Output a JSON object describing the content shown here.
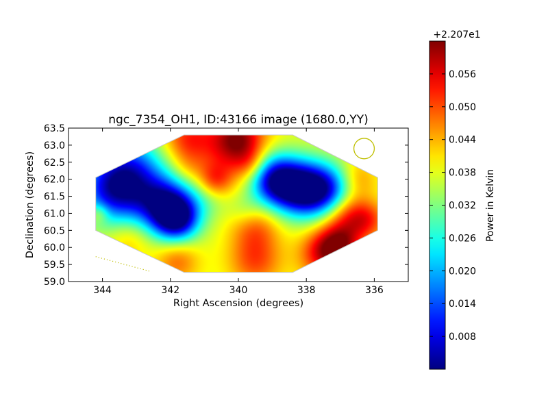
{
  "chart_data": {
    "type": "heatmap",
    "title": "ngc_7354_OH1, ID:43166 image (1680.0,YY)",
    "xlabel": "Right Ascension (degrees)",
    "ylabel": "Declination (degrees)",
    "xlim": [
      345,
      335
    ],
    "ylim": [
      59.0,
      63.5
    ],
    "x_ticks": [
      "344",
      "342",
      "340",
      "338",
      "336"
    ],
    "y_ticks": [
      "59.0",
      "59.5",
      "60.0",
      "60.5",
      "61.0",
      "61.5",
      "62.0",
      "62.5",
      "63.0",
      "63.5"
    ],
    "colormap": "jet",
    "colorbar": {
      "label": "Power in Kelvin",
      "offset_label": "+2.207e1",
      "range": [
        0.002,
        0.062
      ],
      "ticks": [
        "0.008",
        "0.014",
        "0.020",
        "0.026",
        "0.032",
        "0.038",
        "0.044",
        "0.050",
        "0.056"
      ]
    },
    "map_outline": [
      [
        341.6,
        63.3
      ],
      [
        338.4,
        63.3
      ],
      [
        335.9,
        62.05
      ],
      [
        335.9,
        60.5
      ],
      [
        338.4,
        59.27
      ],
      [
        341.6,
        59.27
      ],
      [
        344.2,
        60.5
      ],
      [
        344.2,
        62.05
      ]
    ],
    "field": {
      "background": 0.038,
      "blobs": [
        {
          "ra": 343.6,
          "dec": 61.75,
          "v": -0.034,
          "s": 0.7
        },
        {
          "ra": 342.2,
          "dec": 61.3,
          "v": -0.03,
          "s": 0.6
        },
        {
          "ra": 341.8,
          "dec": 60.85,
          "v": -0.03,
          "s": 0.45
        },
        {
          "ra": 338.0,
          "dec": 61.7,
          "v": -0.034,
          "s": 0.55
        },
        {
          "ra": 338.8,
          "dec": 61.9,
          "v": -0.026,
          "s": 0.55
        },
        {
          "ra": 337.3,
          "dec": 61.7,
          "v": -0.018,
          "s": 0.5
        },
        {
          "ra": 339.1,
          "dec": 62.1,
          "v": -0.012,
          "s": 0.5
        },
        {
          "ra": 343.0,
          "dec": 62.5,
          "v": -0.012,
          "s": 0.6
        },
        {
          "ra": 340.9,
          "dec": 61.5,
          "v": -0.006,
          "s": 0.45
        },
        {
          "ra": 339.8,
          "dec": 61.1,
          "v": -0.005,
          "s": 0.35
        },
        {
          "ra": 340.2,
          "dec": 62.9,
          "v": 0.012,
          "s": 0.8
        },
        {
          "ra": 340.0,
          "dec": 63.2,
          "v": 0.014,
          "s": 0.5
        },
        {
          "ra": 341.5,
          "dec": 63.2,
          "v": 0.012,
          "s": 0.5
        },
        {
          "ra": 340.7,
          "dec": 61.95,
          "v": 0.012,
          "s": 0.35
        },
        {
          "ra": 339.5,
          "dec": 60.6,
          "v": 0.01,
          "s": 0.5
        },
        {
          "ra": 339.5,
          "dec": 59.6,
          "v": 0.012,
          "s": 0.55
        },
        {
          "ra": 337.5,
          "dec": 59.8,
          "v": 0.016,
          "s": 0.5
        },
        {
          "ra": 337.0,
          "dec": 60.1,
          "v": 0.018,
          "s": 0.45
        },
        {
          "ra": 336.8,
          "dec": 61.0,
          "v": 0.012,
          "s": 0.45
        },
        {
          "ra": 336.2,
          "dec": 60.8,
          "v": 0.012,
          "s": 0.4
        },
        {
          "ra": 336.5,
          "dec": 62.0,
          "v": 0.008,
          "s": 0.4
        },
        {
          "ra": 341.8,
          "dec": 59.6,
          "v": 0.01,
          "s": 0.45
        },
        {
          "ra": 343.2,
          "dec": 60.3,
          "v": 0.006,
          "s": 0.45
        },
        {
          "ra": 344.1,
          "dec": 61.0,
          "v": 0.008,
          "s": 0.2
        },
        {
          "ra": 339.6,
          "dec": 62.4,
          "v": 0.008,
          "s": 0.35
        },
        {
          "ra": 341.5,
          "dec": 62.3,
          "v": 0.004,
          "s": 0.35
        }
      ]
    },
    "beam_circle": {
      "ra": 336.3,
      "dec": 62.9,
      "radius_deg": 0.3,
      "color": "#bfbf00"
    },
    "dotted_line": {
      "from": [
        344.2,
        59.73
      ],
      "to": [
        342.6,
        59.3
      ],
      "color": "#bfbf00"
    }
  }
}
